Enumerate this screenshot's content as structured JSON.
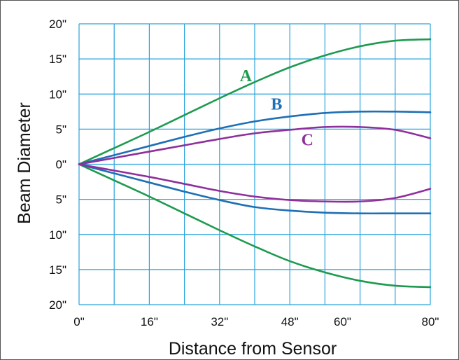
{
  "chart_data": {
    "type": "line",
    "xlabel": "Distance from Sensor",
    "ylabel": "Beam Diameter",
    "x_ticks": [
      {
        "value": 0,
        "label": "0\""
      },
      {
        "value": 16,
        "label": "16\""
      },
      {
        "value": 32,
        "label": "32\""
      },
      {
        "value": 48,
        "label": "48\""
      },
      {
        "value": 60,
        "label": "60\""
      },
      {
        "value": 80,
        "label": "80\""
      }
    ],
    "y_ticks": [
      {
        "value": 20,
        "label": "20\""
      },
      {
        "value": 15,
        "label": "15\""
      },
      {
        "value": 10,
        "label": "10\""
      },
      {
        "value": 5,
        "label": "5\""
      },
      {
        "value": 0,
        "label": "0\""
      },
      {
        "value": -5,
        "label": "5\""
      },
      {
        "value": -10,
        "label": "10\""
      },
      {
        "value": -15,
        "label": "15\""
      },
      {
        "value": -20,
        "label": "20\""
      }
    ],
    "xlim": [
      0,
      80
    ],
    "ylim": [
      -20,
      20
    ],
    "grid": true,
    "colors": {
      "grid": "#29a3dc",
      "A": "#1e9a50",
      "B": "#1f6fb4",
      "C": "#8e2f9c"
    },
    "series": [
      {
        "name": "A",
        "x": [
          0,
          8,
          16,
          24,
          32,
          40,
          48,
          56,
          64,
          72,
          80
        ],
        "upper": [
          0,
          2.3,
          4.6,
          7.0,
          9.4,
          11.7,
          13.8,
          15.5,
          16.8,
          17.6,
          17.8
        ],
        "lower": [
          0,
          -2.3,
          -4.6,
          -7.0,
          -9.4,
          -11.7,
          -13.8,
          -15.4,
          -16.6,
          -17.3,
          -17.5
        ]
      },
      {
        "name": "B",
        "x": [
          0,
          8,
          16,
          24,
          32,
          40,
          48,
          56,
          64,
          72,
          80
        ],
        "upper": [
          0,
          1.3,
          2.6,
          3.9,
          5.1,
          6.1,
          6.8,
          7.3,
          7.5,
          7.5,
          7.4
        ],
        "lower": [
          0,
          -1.3,
          -2.6,
          -3.9,
          -5.1,
          -6.1,
          -6.6,
          -6.9,
          -7.0,
          -7.0,
          -7.0
        ]
      },
      {
        "name": "C",
        "x": [
          0,
          8,
          16,
          24,
          32,
          40,
          48,
          56,
          64,
          72,
          80
        ],
        "upper": [
          0,
          0.9,
          1.8,
          2.7,
          3.6,
          4.4,
          4.9,
          5.3,
          5.3,
          4.9,
          3.7
        ],
        "lower": [
          0,
          -0.9,
          -1.8,
          -2.8,
          -3.8,
          -4.6,
          -5.1,
          -5.3,
          -5.3,
          -4.8,
          -3.5
        ]
      }
    ],
    "series_labels": [
      {
        "text": "A",
        "x": 38,
        "y": 11.8
      },
      {
        "text": "B",
        "x": 45,
        "y": 7.8
      },
      {
        "text": "C",
        "x": 52,
        "y": 2.7
      }
    ]
  }
}
